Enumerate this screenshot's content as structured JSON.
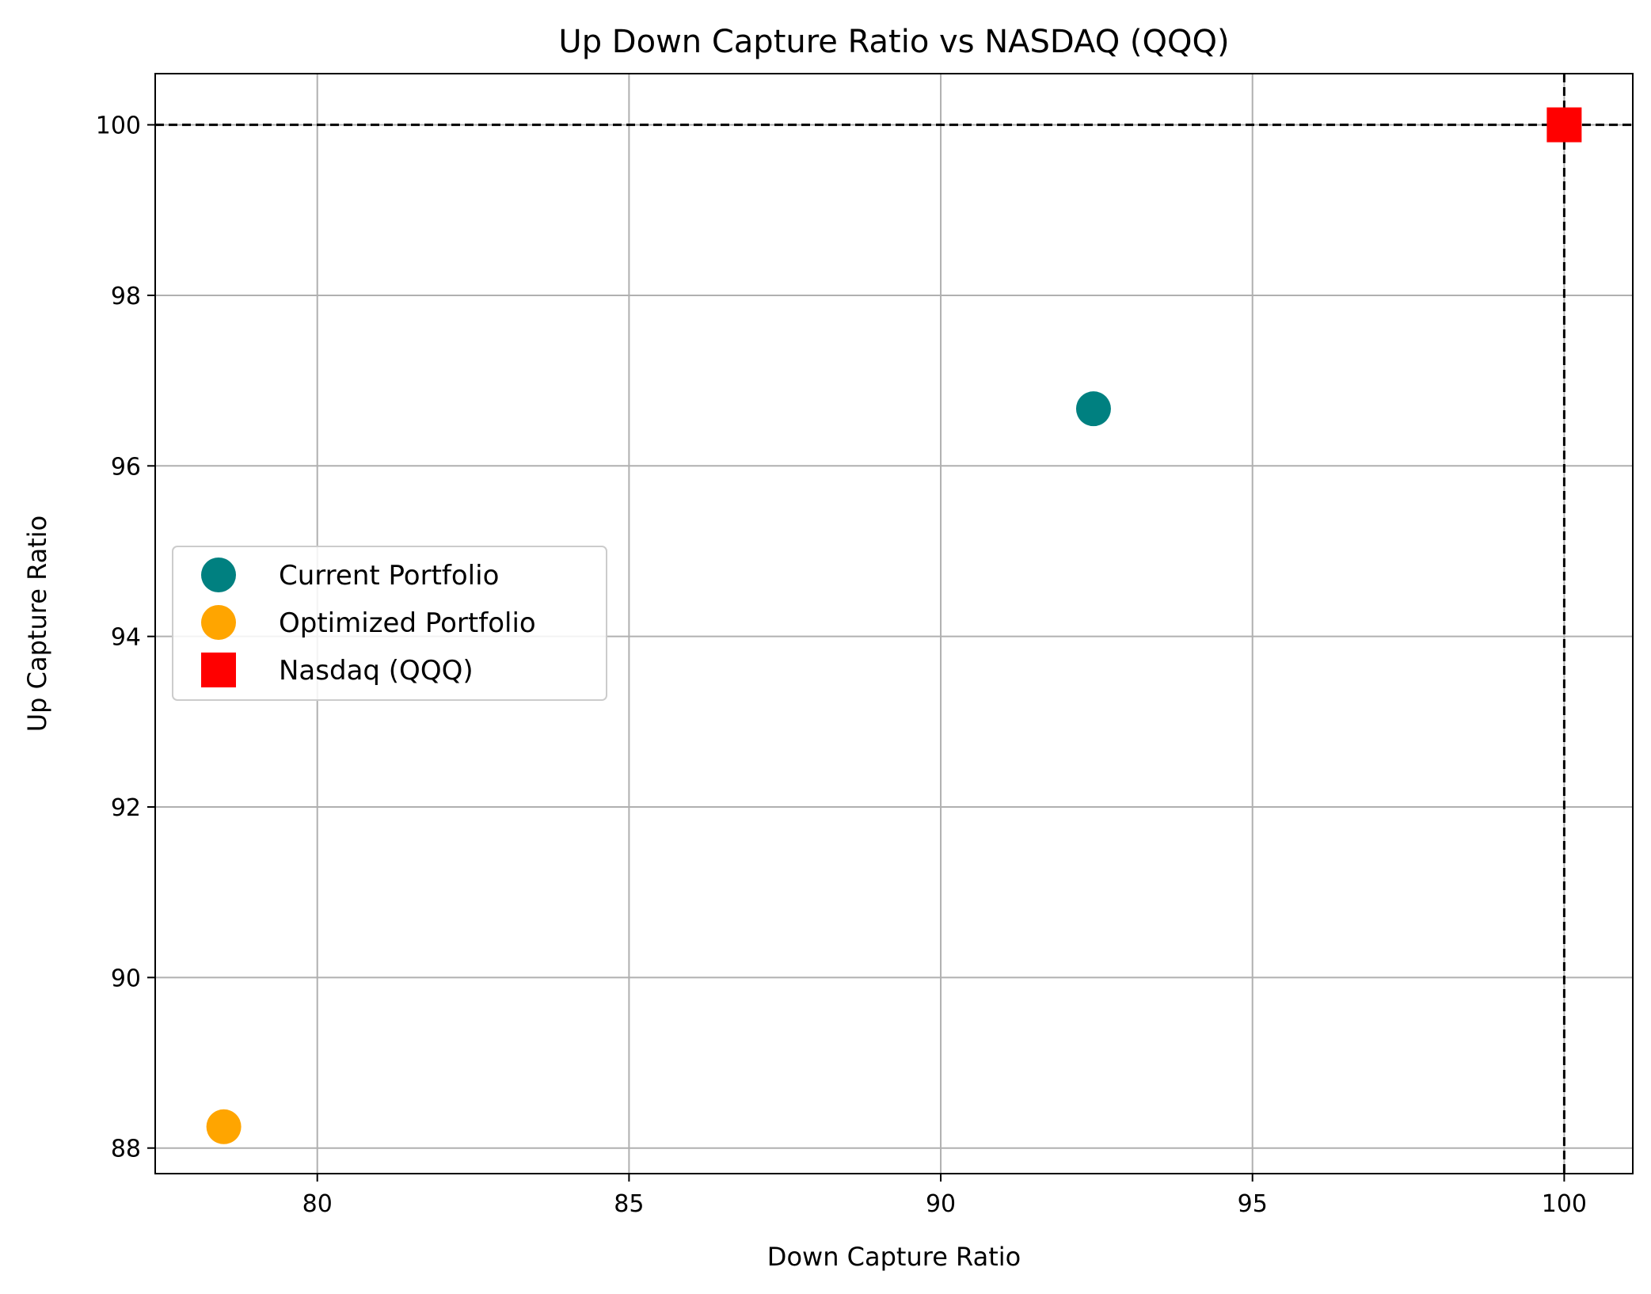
{
  "chart_data": {
    "type": "scatter",
    "title": "Up Down Capture Ratio vs NASDAQ (QQQ)",
    "xlabel": "Down Capture Ratio",
    "ylabel": "Up Capture Ratio",
    "xlim": [
      77.4,
      101.1
    ],
    "ylim": [
      87.7,
      100.6
    ],
    "xticks": [
      80,
      85,
      90,
      95,
      100
    ],
    "yticks": [
      88,
      90,
      92,
      94,
      96,
      98,
      100
    ],
    "grid": true,
    "legend_position": "center-left",
    "reference_lines": [
      {
        "orientation": "horizontal",
        "value": 100,
        "style": "dashed",
        "color": "#000000"
      },
      {
        "orientation": "vertical",
        "value": 100,
        "style": "dashed",
        "color": "#000000"
      }
    ],
    "series": [
      {
        "name": "Current Portfolio",
        "marker": "circle",
        "color": "#008080",
        "points": [
          {
            "x": 92.45,
            "y": 96.67
          }
        ]
      },
      {
        "name": "Optimized Portfolio",
        "marker": "circle",
        "color": "#FFA500",
        "points": [
          {
            "x": 78.5,
            "y": 88.25
          }
        ]
      },
      {
        "name": "Nasdaq (QQQ)",
        "marker": "square",
        "color": "#FF0000",
        "points": [
          {
            "x": 100,
            "y": 100
          }
        ]
      }
    ]
  }
}
